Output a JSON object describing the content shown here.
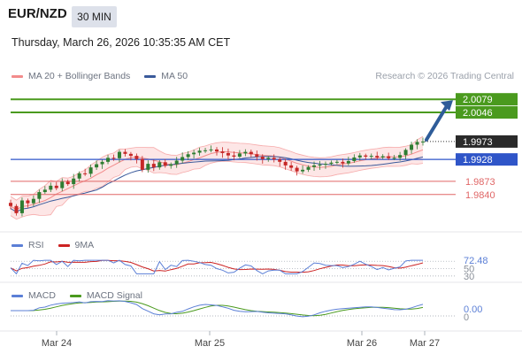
{
  "header": {
    "pair": "EUR/NZD",
    "timeframe": "30 MIN",
    "datetime": "Thursday, March 26, 2026 10:35:35 AM CET"
  },
  "legend": {
    "bollinger": "MA 20 + Bollinger Bands",
    "ma50": "MA 50",
    "rsi": "RSI",
    "rsi_ma": "9MA",
    "macd": "MACD",
    "macd_signal": "MACD Signal"
  },
  "research": "Research © 2026 Trading Central",
  "colors": {
    "up_candle": "#2e7d32",
    "down_candle": "#c62828",
    "bollinger": "#f28b8b",
    "ma50": "#3a5a9b",
    "resistance": "#4a9a1e",
    "pivot": "#2f55c8",
    "support": "#e06666",
    "arrow": "#2e5c99",
    "rsi": "#5b7fd6",
    "rsi_ma": "#cc2222",
    "macd": "#5b7fd6",
    "macd_signal": "#4a9a1e"
  },
  "chart_data": [
    {
      "type": "candlestick",
      "ylim": [
        1.9755,
        2.0115
      ],
      "x_ticks": [
        "Mar 24",
        "Mar 25",
        "Mar 26",
        "Mar 27"
      ],
      "last_price": "1.9973",
      "levels": [
        {
          "value": 2.0079,
          "label": "2.0079",
          "kind": "resistance"
        },
        {
          "value": 2.0046,
          "label": "2.0046",
          "kind": "resistance"
        },
        {
          "value": 1.9928,
          "label": "1.9928",
          "kind": "pivot"
        },
        {
          "value": 1.9873,
          "label": "1.9873",
          "kind": "support"
        },
        {
          "value": 1.984,
          "label": "1.9840",
          "kind": "support"
        }
      ],
      "close_path": [
        1.9811,
        1.9793,
        1.9825,
        1.9818,
        1.9829,
        1.9846,
        1.9852,
        1.9862,
        1.9856,
        1.9872,
        1.9866,
        1.988,
        1.9893,
        1.9892,
        1.9908,
        1.9916,
        1.9922,
        1.9932,
        1.9931,
        1.9947,
        1.9942,
        1.9937,
        1.9929,
        1.9902,
        1.9917,
        1.9908,
        1.9921,
        1.9912,
        1.9916,
        1.9925,
        1.9934,
        1.9941,
        1.9945,
        1.995,
        1.9951,
        1.9953,
        1.9948,
        1.9944,
        1.9938,
        1.9935,
        1.9943,
        1.9947,
        1.9941,
        1.9935,
        1.9929,
        1.9932,
        1.9928,
        1.9922,
        1.9913,
        1.9907,
        1.9898,
        1.9902,
        1.9909,
        1.9913,
        1.9915,
        1.9917,
        1.992,
        1.9922,
        1.9918,
        1.9924,
        1.9933,
        1.9938,
        1.9935,
        1.9937,
        1.9933,
        1.9936,
        1.9931,
        1.9932,
        1.9939,
        1.9952,
        1.9965,
        1.9972,
        1.9973
      ],
      "forecast_to": 2.0079
    },
    {
      "type": "line",
      "name": "RSI",
      "ylim": [
        25,
        80
      ],
      "reference_lines": [
        70,
        50,
        30
      ],
      "tick_labels": [
        "72.48",
        "50",
        "30"
      ],
      "last_value": 72.48
    },
    {
      "type": "line",
      "name": "MACD",
      "tick_labels": [
        "0.00",
        "0"
      ],
      "last_value": 0.0
    }
  ]
}
